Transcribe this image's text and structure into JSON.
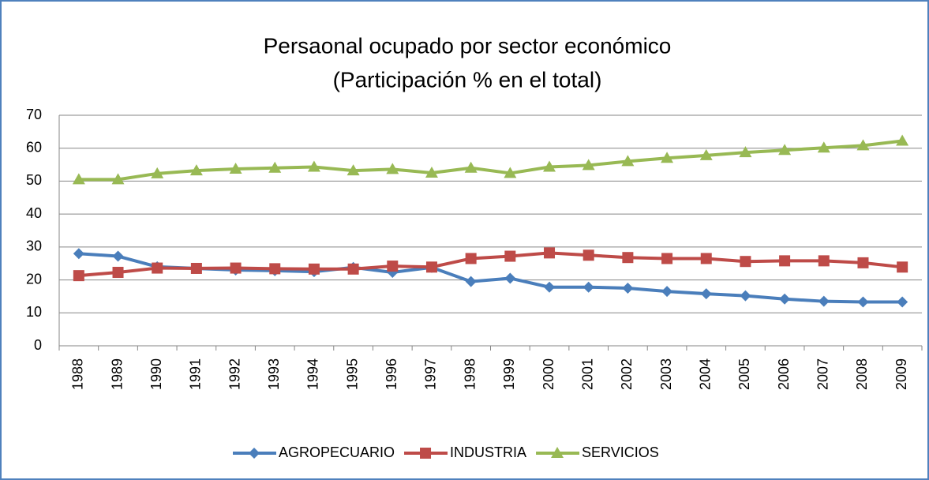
{
  "chart_data": {
    "type": "line",
    "title": "Persaonal ocupado por sector económico",
    "subtitle": "(Participación % en el total)",
    "categories": [
      "1988",
      "1989",
      "1990",
      "1991",
      "1992",
      "1993",
      "1994",
      "1995",
      "1996",
      "1997",
      "1998",
      "1999",
      "2000",
      "2001",
      "2002",
      "2003",
      "2004",
      "2005",
      "2006",
      "2007",
      "2008",
      "2009"
    ],
    "series": [
      {
        "name": "AGROPECUARIO",
        "color": "#4a7ebb",
        "marker": "diamond",
        "values": [
          28,
          27.2,
          24,
          23.5,
          23,
          22.8,
          22.5,
          23.8,
          22.3,
          23.8,
          19.5,
          20.5,
          17.8,
          17.8,
          17.5,
          16.5,
          15.8,
          15.2,
          14.2,
          13.5,
          13.3,
          13.3
        ]
      },
      {
        "name": "INDUSTRIA",
        "color": "#be4b48",
        "marker": "square",
        "values": [
          21.3,
          22.3,
          23.6,
          23.5,
          23.6,
          23.4,
          23.3,
          23.3,
          24.2,
          23.9,
          26.5,
          27.2,
          28.2,
          27.5,
          26.8,
          26.5,
          26.5,
          25.6,
          25.8,
          25.8,
          25.2,
          23.9
        ]
      },
      {
        "name": "SERVICIOS",
        "color": "#98b954",
        "marker": "triangle",
        "values": [
          50.5,
          50.5,
          52.3,
          53.2,
          53.7,
          54.0,
          54.3,
          53.2,
          53.6,
          52.5,
          54.0,
          52.4,
          54.3,
          54.8,
          56.0,
          57.0,
          57.8,
          58.7,
          59.4,
          60.1,
          60.8,
          62.2
        ]
      }
    ],
    "ylim": [
      0,
      70
    ],
    "yticks": [
      0,
      10,
      20,
      30,
      40,
      50,
      60,
      70
    ],
    "grid": true,
    "legend": "bottom"
  }
}
